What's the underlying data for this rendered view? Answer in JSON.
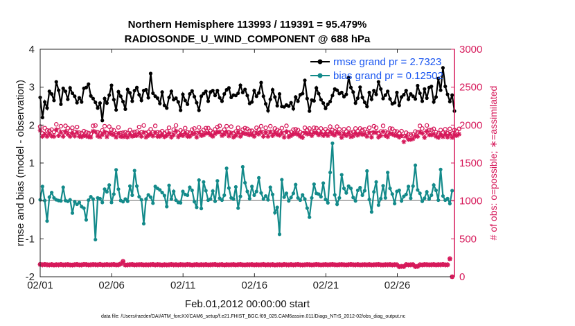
{
  "chart_data": {
    "type": "line",
    "title_line1": "Northern Hemisphere 113993 / 119391 = 95.479%",
    "title_line2": "RADIOSONDE_U_WIND_COMPONENT @ 688 hPa",
    "xlabel": "Feb.01,2012 00:00:00 start",
    "ylabel_left": "rmse and bias (model - observation)",
    "ylabel_right": "# of obs: o=possible; ∗=assimilated",
    "footnote": "data file: /Users/raeder/DAI/ATM_forcXX/CAM6_setup/f.e21.FHIST_BGC.f09_025.CAM6assim.011/Diags_NTrS_2012-02/obs_diag_output.nc",
    "x_tick_labels": [
      "02/01",
      "02/06",
      "02/11",
      "02/16",
      "02/21",
      "02/26"
    ],
    "x_tick_days": [
      0,
      5,
      10,
      15,
      20,
      25
    ],
    "x_range_days": [
      0,
      29
    ],
    "ylim_left": [
      -2,
      4
    ],
    "y_ticks_left": [
      "-2",
      "-1",
      "0",
      "1",
      "2",
      "3",
      "4"
    ],
    "ylim_right": [
      0,
      3000
    ],
    "y_ticks_right": [
      "0",
      "500",
      "1000",
      "1500",
      "2000",
      "2500",
      "3000"
    ],
    "colors": {
      "rmse": "#000000",
      "bias": "#138a8a",
      "obs": "#d6195a",
      "zero_line": "#b3b3b3",
      "legend_text": "#1a56f0"
    },
    "series": [
      {
        "name": "rmse grand pr = 2.7323",
        "axis": "left",
        "values": [
          2.73,
          2.2,
          2.61,
          2.45,
          2.89,
          2.82,
          2.65,
          3.14,
          2.92,
          2.55,
          2.97,
          2.89,
          2.68,
          2.98,
          2.84,
          2.76,
          2.59,
          2.72,
          2.61,
          2.97,
          2.99,
          3.08,
          2.77,
          2.7,
          2.6,
          2.45,
          2.58,
          2.12,
          2.7,
          2.58,
          2.79,
          3.05,
          2.67,
          2.4,
          2.88,
          2.76,
          2.62,
          2.42,
          2.94,
          2.85,
          2.63,
          2.91,
          2.99,
          2.8,
          2.65,
          2.91,
          2.93,
          2.72,
          3.36,
          2.84,
          2.76,
          2.71,
          2.57,
          2.87,
          2.52,
          2.45,
          2.73,
          2.89,
          2.67,
          2.71,
          2.61,
          2.39,
          2.81,
          2.65,
          2.55,
          2.82,
          2.9,
          2.75,
          2.59,
          2.39,
          2.76,
          2.83,
          2.89,
          2.63,
          2.87,
          2.91,
          2.78,
          2.91,
          2.72,
          2.63,
          2.82,
          2.93,
          2.98,
          2.73,
          2.79,
          2.78,
          2.84,
          3.05,
          2.86,
          2.94,
          2.78,
          2.57,
          2.61,
          2.91,
          2.76,
          2.85,
          3.12,
          2.76,
          2.56,
          2.38,
          2.68,
          2.93,
          2.74,
          2.51,
          2.82,
          2.49,
          2.48,
          2.53,
          2.5,
          2.59,
          2.43,
          2.74,
          2.63,
          2.8,
          2.83,
          3.18,
          2.7,
          2.37,
          2.66,
          2.64,
          2.98,
          2.83,
          2.67,
          2.58,
          2.44,
          2.55,
          2.62,
          2.78,
          2.95,
          2.92,
          2.83,
          2.86,
          2.75,
          2.81,
          3.25,
          2.99,
          2.87,
          2.58,
          2.71,
          3.0,
          2.73,
          2.6,
          2.49,
          2.86,
          2.68,
          2.91,
          2.81,
          3.14,
          2.95,
          2.7,
          2.79,
          2.89,
          2.69,
          2.56,
          2.59,
          2.86,
          2.52,
          2.74,
          2.8,
          2.91,
          2.68,
          2.82,
          2.76,
          2.69,
          3.04,
          2.84,
          2.63,
          2.95,
          2.71,
          2.99,
          3.02,
          2.61,
          2.74,
          3.23,
          2.92,
          3.51,
          3.02,
          2.81,
          2.62,
          2.79,
          2.37
        ]
      },
      {
        "name": "bias grand pr = 0.12502",
        "axis": "left",
        "values": [
          0.03,
          0.38,
          0.01,
          -0.53,
          0.1,
          0.22,
          0.08,
          0.03,
          0.01,
          0.0,
          0.36,
          0.01,
          -0.01,
          0.03,
          -0.32,
          -0.02,
          -0.09,
          -0.04,
          -0.15,
          -0.19,
          -0.5,
          0.02,
          0.11,
          0.05,
          -1.02,
          0.08,
          0.06,
          -0.04,
          0.31,
          0.24,
          0.42,
          -0.04,
          0.18,
          0.82,
          0.31,
          0.01,
          -0.02,
          0.05,
          -0.01,
          0.39,
          0.15,
          0.8,
          0.39,
          0.11,
          0.03,
          -0.6,
          0.05,
          0.16,
          0.1,
          -0.06,
          0.38,
          0.33,
          0.29,
          0.22,
          0.14,
          -0.15,
          0.41,
          0.05,
          0.25,
          0.02,
          -0.04,
          -0.05,
          0.25,
          0.17,
          0.15,
          0.36,
          0.28,
          -0.02,
          -0.17,
          0.55,
          -0.2,
          0.5,
          0.27,
          0.02,
          0.05,
          0.26,
          -0.01,
          0.53,
          0.07,
          0.02,
          0.15,
          0.86,
          0.34,
          0.08,
          0.05,
          0.37,
          -0.19,
          0.12,
          0.9,
          0.48,
          0.25,
          0.06,
          0.38,
          0.15,
          0.25,
          0.61,
          0.21,
          0.05,
          0.13,
          0.03,
          0.36,
          0.17,
          -0.31,
          -0.17,
          -0.88,
          0.56,
          0.1,
          0.2,
          0.0,
          0.09,
          0.2,
          0.43,
          0.08,
          0.02,
          0.16,
          0.05,
          -0.19,
          -0.43,
          0.08,
          0.44,
          0.2,
          0.18,
          0.11,
          0.47,
          0.04,
          -0.05,
          0.75,
          1.52,
          0.16,
          -0.09,
          0.08,
          0.69,
          0.33,
          0.21,
          0.39,
          0.33,
          0.09,
          0.0,
          0.28,
          0.35,
          0.15,
          0.27,
          0.79,
          0.04,
          -0.29,
          0.24,
          0.5,
          -0.11,
          0.06,
          0.4,
          0.08,
          0.75,
          0.33,
          0.18,
          -0.07,
          0.25,
          0.28,
          0.0,
          0.12,
          0.17,
          0.38,
          0.07,
          0.39,
          0.94,
          0.29,
          0.2,
          -0.01,
          0.07,
          0.24,
          0.05,
          0.15,
          0.42,
          0.28,
          0.02,
          0.83,
          0.13,
          0.02,
          0.06,
          -0.07,
          0.27
        ]
      },
      {
        "name": "obs possible",
        "axis": "right",
        "values": [
          1980,
          1890,
          1960,
          1930,
          1925,
          1940,
          1910,
          2010,
          1930,
          1985,
          1905,
          1990,
          1960,
          1925,
          1965,
          1910,
          1975,
          1900,
          1895,
          1920,
          1905,
          1895,
          1885,
          1990,
          1995,
          1905,
          1895,
          1930,
          1985,
          1895,
          1980,
          1940,
          1930,
          1890,
          1970,
          1895,
          1900,
          1905,
          1895,
          1935,
          1900,
          1910,
          1915,
          1975,
          1905,
          1995,
          1895,
          1910,
          1945,
          1905,
          1990,
          1905,
          1900,
          1920,
          1895,
          1915,
          1965,
          1885,
          1940,
          1995,
          1900,
          1930,
          1910,
          1960,
          1905,
          1900,
          1940,
          1955,
          1895,
          1970,
          1910,
          1935,
          1960,
          1960,
          1925,
          1900,
          1945,
          1975,
          1990,
          1910,
          1940,
          1985,
          1905,
          1980,
          1895,
          1915,
          1965,
          1910,
          1940,
          1960,
          1950,
          1925,
          1925,
          1900,
          1965,
          1940,
          1985,
          1905,
          1965,
          1905,
          1985,
          1910,
          1955,
          1935,
          1920,
          1960,
          1895,
          1990,
          1900,
          1910,
          1940,
          1945,
          1935,
          1905,
          1890,
          1965,
          1935,
          1955,
          1910,
          1965,
          1960,
          1925,
          1955,
          1915,
          1945,
          1920,
          1980,
          1935,
          1920,
          1980,
          1945,
          1890,
          1945,
          1915,
          1955,
          1900,
          1910,
          1955,
          1920,
          1955,
          1935,
          1945,
          1905,
          1965,
          1895,
          1985,
          1965,
          1895,
          1915,
          1990,
          1915,
          1900,
          1955,
          1950,
          1920,
          1915,
          1895,
          1920,
          1855,
          1900,
          1880,
          1875,
          1880,
          1915,
          1905,
          1990,
          1955,
          1890,
          1995,
          1935,
          1935,
          1950,
          1905,
          1890,
          1935,
          1900,
          1945,
          1895,
          1950,
          1890,
          1935,
          1920,
          1950
        ]
      },
      {
        "name": "obs assimilated",
        "axis": "right",
        "values": [
          1930,
          1850,
          1880,
          1850,
          1885,
          1855,
          1850,
          1940,
          1860,
          1905,
          1850,
          1915,
          1880,
          1850,
          1890,
          1855,
          1905,
          1850,
          1845,
          1860,
          1855,
          1845,
          1840,
          1920,
          1910,
          1855,
          1845,
          1875,
          1910,
          1845,
          1895,
          1880,
          1870,
          1840,
          1890,
          1850,
          1845,
          1855,
          1840,
          1875,
          1850,
          1860,
          1860,
          1890,
          1850,
          1905,
          1840,
          1860,
          1880,
          1855,
          1900,
          1850,
          1850,
          1870,
          1845,
          1860,
          1890,
          1840,
          1870,
          1920,
          1845,
          1870,
          1860,
          1890,
          1850,
          1850,
          1880,
          1890,
          1840,
          1900,
          1860,
          1870,
          1890,
          1895,
          1870,
          1850,
          1885,
          1905,
          1910,
          1860,
          1880,
          1910,
          1855,
          1895,
          1840,
          1860,
          1900,
          1850,
          1885,
          1890,
          1880,
          1870,
          1875,
          1850,
          1895,
          1880,
          1910,
          1850,
          1900,
          1850,
          1910,
          1860,
          1895,
          1875,
          1865,
          1895,
          1840,
          1915,
          1845,
          1860,
          1880,
          1890,
          1875,
          1850,
          1835,
          1900,
          1880,
          1890,
          1860,
          1900,
          1895,
          1870,
          1890,
          1860,
          1885,
          1860,
          1905,
          1880,
          1865,
          1905,
          1885,
          1835,
          1880,
          1860,
          1890,
          1845,
          1855,
          1890,
          1865,
          1890,
          1875,
          1880,
          1850,
          1900,
          1840,
          1905,
          1900,
          1840,
          1860,
          1915,
          1860,
          1845,
          1890,
          1880,
          1865,
          1860,
          1840,
          1860,
          1780,
          1850,
          1810,
          1810,
          1820,
          1855,
          1850,
          1910,
          1890,
          1835,
          1920,
          1870,
          1870,
          1880,
          1850,
          1835,
          1870,
          1845,
          1880,
          1840,
          1880,
          1835,
          1870,
          1860,
          1880
        ]
      },
      {
        "name": "obs possible low",
        "axis": "right",
        "values": [
          165,
          160,
          163,
          160,
          158,
          162,
          157,
          161,
          159,
          163,
          158,
          160,
          162,
          158,
          157,
          161,
          163,
          158,
          159,
          164,
          162,
          158,
          160,
          162,
          161,
          159,
          165,
          158,
          160,
          162,
          159,
          161,
          163,
          158,
          160,
          172,
          205,
          157,
          159,
          161,
          163,
          158,
          160,
          161,
          162,
          158,
          160,
          159,
          161,
          163,
          158,
          162,
          160,
          157,
          161,
          158,
          160,
          163,
          159,
          161,
          158,
          162,
          160,
          159,
          163,
          161,
          157,
          160,
          162,
          158,
          161,
          159,
          162,
          158,
          160,
          161,
          163,
          158,
          160,
          162,
          157,
          161,
          159,
          160,
          162,
          158,
          161,
          163,
          159,
          158,
          161,
          160,
          162,
          158,
          161,
          159,
          160,
          163,
          158,
          161,
          159,
          162,
          157,
          160,
          161,
          158,
          163,
          160,
          159,
          162,
          158,
          161,
          163,
          159,
          158,
          160,
          162,
          161,
          158,
          160,
          163,
          161,
          158,
          160,
          162,
          159,
          161,
          163,
          160,
          158,
          161,
          162,
          160,
          158,
          161,
          163,
          160,
          159,
          162,
          158,
          160,
          161,
          159,
          162,
          158,
          160,
          161,
          163,
          159,
          158,
          161,
          160,
          162,
          158,
          161,
          160,
          135,
          140,
          138,
          162,
          158,
          160,
          161,
          137,
          140,
          160,
          158,
          162,
          161,
          159,
          160,
          162,
          158,
          161,
          160,
          163,
          159,
          160,
          240,
          0
        ]
      },
      {
        "name": "obs assimilated low",
        "axis": "right",
        "values": [
          160,
          155,
          158,
          155,
          153,
          157,
          152,
          156,
          154,
          158,
          153,
          155,
          157,
          153,
          152,
          156,
          158,
          153,
          154,
          159,
          157,
          153,
          155,
          157,
          156,
          154,
          160,
          153,
          155,
          157,
          154,
          156,
          158,
          153,
          155,
          167,
          200,
          152,
          154,
          156,
          158,
          153,
          155,
          156,
          157,
          153,
          155,
          154,
          156,
          158,
          153,
          157,
          155,
          152,
          156,
          153,
          155,
          158,
          154,
          156,
          153,
          157,
          155,
          154,
          158,
          156,
          152,
          155,
          157,
          153,
          156,
          154,
          157,
          153,
          155,
          156,
          158,
          153,
          155,
          157,
          152,
          156,
          154,
          155,
          157,
          153,
          156,
          158,
          154,
          153,
          156,
          155,
          157,
          153,
          156,
          154,
          155,
          158,
          153,
          156,
          154,
          157,
          152,
          155,
          156,
          153,
          158,
          155,
          154,
          157,
          153,
          156,
          158,
          154,
          153,
          155,
          157,
          156,
          153,
          155,
          158,
          156,
          153,
          155,
          157,
          154,
          156,
          158,
          155,
          153,
          156,
          157,
          155,
          153,
          156,
          158,
          155,
          154,
          157,
          153,
          155,
          156,
          154,
          157,
          153,
          155,
          156,
          158,
          154,
          153,
          156,
          155,
          157,
          153,
          156,
          155,
          130,
          135,
          133,
          157,
          153,
          155,
          156,
          132,
          135,
          155,
          153,
          157,
          156,
          154,
          155,
          157,
          153,
          156,
          155,
          158,
          154,
          155,
          235,
          0
        ]
      }
    ],
    "legend": {
      "placement": "top-right"
    }
  }
}
